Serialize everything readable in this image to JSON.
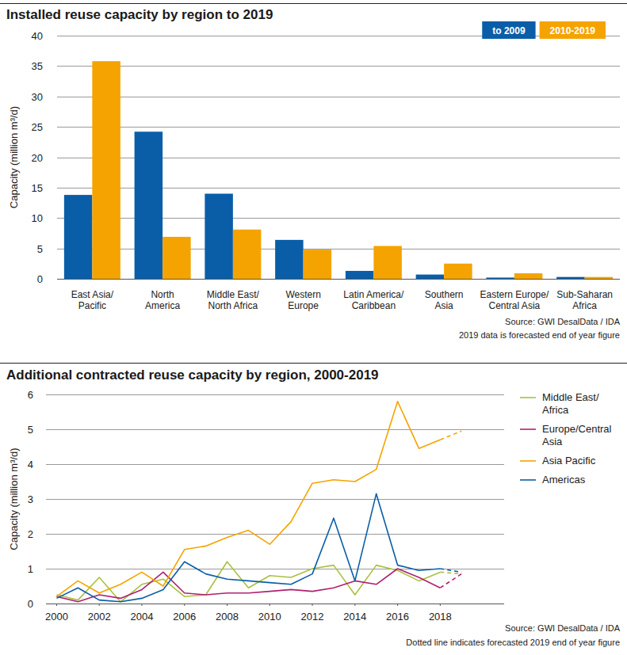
{
  "chart_data": [
    {
      "type": "bar",
      "title": "Installed reuse capacity by region to 2019",
      "y_label": "Capacity (million m³/d)",
      "categories": [
        "East Asia/\nPacific",
        "North\nAmerica",
        "Middle East/\nNorth Africa",
        "Western\nEurope",
        "Latin America/\nCaribbean",
        "Southern\nAsia",
        "Eastern Europe/\nCentral Asia",
        "Sub-Saharan\nAfrica"
      ],
      "series": [
        {
          "name": "to 2009",
          "color": "#0a5ea8",
          "values": [
            13.8,
            24.2,
            14.0,
            6.4,
            1.3,
            0.7,
            0.2,
            0.3
          ]
        },
        {
          "name": "2010-2019",
          "color": "#f5a300",
          "values": [
            35.8,
            6.9,
            8.1,
            4.8,
            5.4,
            2.5,
            0.9,
            0.3
          ]
        }
      ],
      "ylim": [
        0,
        40
      ],
      "yticks": [
        0,
        5,
        10,
        15,
        20,
        25,
        30,
        35,
        40
      ],
      "grid": true,
      "legend": "top-right",
      "annotations": [
        "Source: GWI DesalData / IDA",
        "2019 data is forecasted end of year figure"
      ]
    },
    {
      "type": "line",
      "title": "Additional contracted reuse capacity by region, 2000-2019",
      "y_label": "Capacity (million m³/d)",
      "x": [
        2000,
        2001,
        2002,
        2003,
        2004,
        2005,
        2006,
        2007,
        2008,
        2009,
        2010,
        2011,
        2012,
        2013,
        2014,
        2015,
        2016,
        2017,
        2018,
        2019
      ],
      "series": [
        {
          "name": "Middle East/\nAfrica",
          "color": "#a7c23e",
          "line_style": "solid",
          "values": [
            0.25,
            0.1,
            0.75,
            0.05,
            0.55,
            0.7,
            0.2,
            0.25,
            1.2,
            0.45,
            0.8,
            0.75,
            1.0,
            1.1,
            0.25,
            1.1,
            0.95,
            0.65,
            0.9,
            null
          ]
        },
        {
          "name": "Europe/Central\nAsia",
          "color": "#b0206f",
          "line_style": "solid",
          "values": [
            0.2,
            0.05,
            0.25,
            0.15,
            0.4,
            0.9,
            0.3,
            0.25,
            0.3,
            0.3,
            0.35,
            0.4,
            0.35,
            0.45,
            0.65,
            0.55,
            1.0,
            0.75,
            0.45,
            null
          ]
        },
        {
          "name": "Asia Pacific",
          "color": "#f5a300",
          "line_style": "solid",
          "values": [
            0.2,
            0.65,
            0.3,
            0.55,
            0.9,
            0.5,
            1.55,
            1.65,
            1.9,
            2.1,
            1.7,
            2.35,
            3.45,
            3.55,
            3.5,
            3.85,
            5.8,
            4.45,
            4.7,
            null
          ]
        },
        {
          "name": "Americas",
          "color": "#0a5ea8",
          "line_style": "solid",
          "values": [
            0.15,
            0.45,
            0.1,
            0.05,
            0.15,
            0.4,
            1.2,
            0.85,
            0.7,
            0.65,
            0.6,
            0.55,
            0.85,
            2.45,
            0.65,
            3.15,
            1.1,
            0.95,
            1.0,
            null
          ]
        },
        {
          "name": "Middle East/\nAfrica",
          "color": "#a7c23e",
          "line_style": "dashed",
          "values": [
            null,
            null,
            null,
            null,
            null,
            null,
            null,
            null,
            null,
            null,
            null,
            null,
            null,
            null,
            null,
            null,
            null,
            null,
            0.9,
            0.85
          ]
        },
        {
          "name": "Europe/Central\nAsia",
          "color": "#b0206f",
          "line_style": "dashed",
          "values": [
            null,
            null,
            null,
            null,
            null,
            null,
            null,
            null,
            null,
            null,
            null,
            null,
            null,
            null,
            null,
            null,
            null,
            null,
            0.45,
            0.85
          ]
        },
        {
          "name": "Asia Pacific",
          "color": "#f5a300",
          "line_style": "dashed",
          "values": [
            null,
            null,
            null,
            null,
            null,
            null,
            null,
            null,
            null,
            null,
            null,
            null,
            null,
            null,
            null,
            null,
            null,
            null,
            4.7,
            4.95
          ]
        },
        {
          "name": "Americas",
          "color": "#0a5ea8",
          "line_style": "dashed",
          "values": [
            null,
            null,
            null,
            null,
            null,
            null,
            null,
            null,
            null,
            null,
            null,
            null,
            null,
            null,
            null,
            null,
            null,
            null,
            1.0,
            0.9
          ]
        }
      ],
      "xlim": [
        1999.5,
        2021
      ],
      "xticks": [
        2000,
        2002,
        2004,
        2006,
        2008,
        2010,
        2012,
        2014,
        2016,
        2018
      ],
      "ylim": [
        0,
        6
      ],
      "yticks": [
        0,
        1,
        2,
        3,
        4,
        5,
        6
      ],
      "grid": true,
      "legend": "right",
      "annotations": [
        "Source: GWI DesalData / IDA",
        "Dotted line indicates forecasted 2019 end of year figure"
      ]
    }
  ]
}
